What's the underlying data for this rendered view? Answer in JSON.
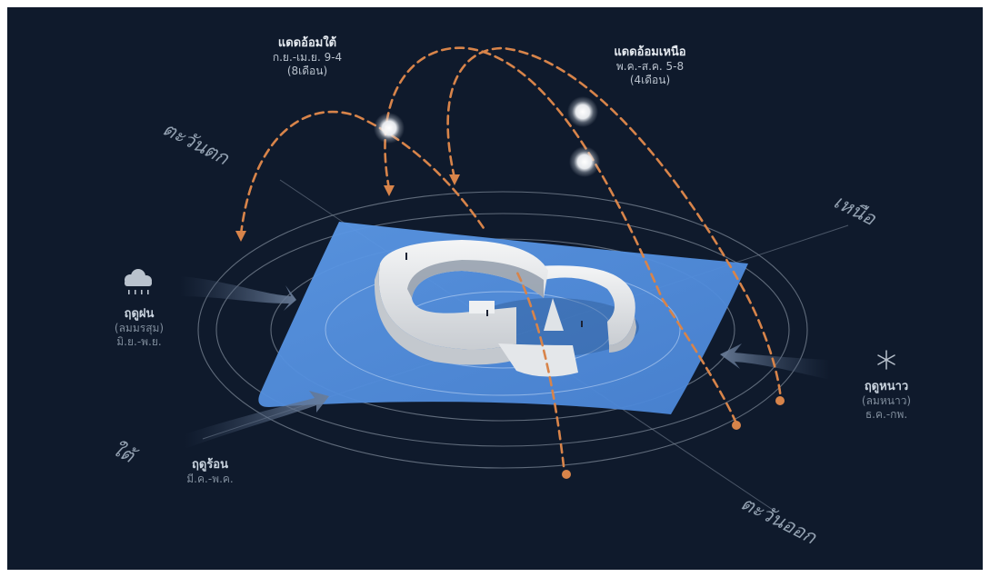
{
  "sun_paths": {
    "south": {
      "title": "แดดอ้อมใต้",
      "months": "ก.ย.-เม.ย. 9-4",
      "duration": "(8เดือน)"
    },
    "north": {
      "title": "แดดอ้อมเหนือ",
      "months": "พ.ค.-ส.ค. 5-8",
      "duration": "(4เดือน)"
    }
  },
  "directions": {
    "west": "ตะวันตก",
    "north": "เหนือ",
    "south": "ใต้",
    "east": "ตะวันออก"
  },
  "seasons": {
    "rainy": {
      "title": "ฤดูฝน",
      "wind": "(ลมมรสุม)",
      "months": "มิ.ย.-พ.ย.",
      "icon": "rain-cloud-icon"
    },
    "winter": {
      "title": "ฤดูหนาว",
      "wind": "(ลมหนาว)",
      "months": "ธ.ค.-กพ.",
      "icon": "snowflake-icon"
    },
    "hot": {
      "title": "ฤดูร้อน",
      "months": "มี.ค.-พ.ค."
    }
  },
  "colors": {
    "background": "#0f1a2c",
    "ground_plane": "#4f8de0",
    "sun_path": "#d8844a",
    "building": "#eef0f2",
    "wind_arrow": "#5c6e8a",
    "orbit": "#7b8796"
  }
}
